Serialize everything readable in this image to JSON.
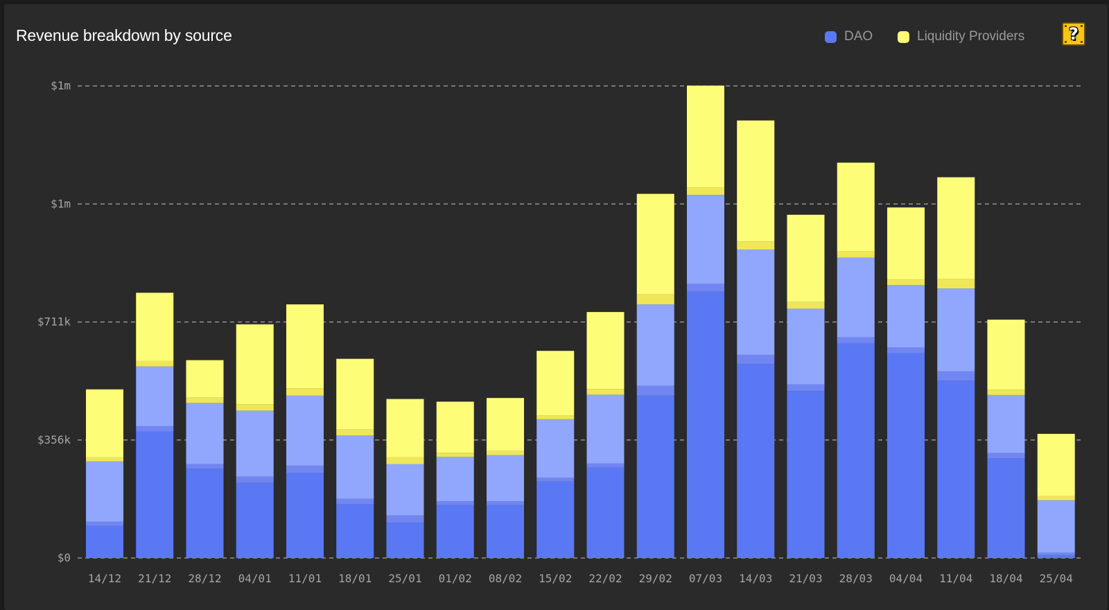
{
  "title": "Revenue breakdown by source",
  "legend": [
    {
      "label": "DAO",
      "color": "#5a78f4"
    },
    {
      "label": "Liquidity Providers",
      "color": "#fdfd78"
    }
  ],
  "help_icon": "question-block-icon",
  "help_symbol": "?",
  "colors": {
    "background": "#2a2a2a",
    "grid": "#bdbdbd",
    "dao_dark": "#5a78f4",
    "dao_light": "#90a7fd",
    "dao_mid": "#7186f1",
    "lp_light": "#fdfd78",
    "lp_dark": "#efe757"
  },
  "chart_data": {
    "type": "bar",
    "stacked": true,
    "categories": [
      "14/12",
      "21/12",
      "28/12",
      "04/01",
      "11/01",
      "18/01",
      "25/01",
      "01/02",
      "08/02",
      "15/02",
      "22/02",
      "29/02",
      "07/03",
      "14/03",
      "21/03",
      "28/03",
      "04/04",
      "11/04",
      "18/04",
      "25/04"
    ],
    "y_tick_labels": [
      "$0",
      "$356k",
      "$711k",
      "$1m",
      "$1m"
    ],
    "ylim": [
      0,
      1422000
    ],
    "grid": true,
    "legend_position": "top-right",
    "series": [
      {
        "name": "DAO",
        "segments": [
          "dao_dark",
          "dao_mid",
          "dao_light"
        ],
        "values": [
          [
            97000,
            12000,
            182000
          ],
          [
            381000,
            16000,
            180000
          ],
          [
            269000,
            14000,
            184000
          ],
          [
            226000,
            19000,
            199000
          ],
          [
            256000,
            22000,
            211000
          ],
          [
            162000,
            16000,
            191000
          ],
          [
            106000,
            22000,
            155000
          ],
          [
            159000,
            12000,
            134000
          ],
          [
            159000,
            12000,
            139000
          ],
          [
            230000,
            12000,
            176000
          ],
          [
            272000,
            13000,
            207000
          ],
          [
            489000,
            30000,
            245000
          ],
          [
            803000,
            23000,
            268000
          ],
          [
            584000,
            28000,
            317000
          ],
          [
            503000,
            20000,
            228000
          ],
          [
            646000,
            19000,
            240000
          ],
          [
            617000,
            17000,
            188000
          ],
          [
            534000,
            28000,
            250000
          ],
          [
            300000,
            16000,
            175000
          ],
          [
            8000,
            8000,
            158000
          ]
        ]
      },
      {
        "name": "Liquidity Providers",
        "segments": [
          "lp_dark",
          "lp_light"
        ],
        "values": [
          [
            12000,
            205000
          ],
          [
            17000,
            205000
          ],
          [
            16000,
            113000
          ],
          [
            19000,
            241000
          ],
          [
            22000,
            253000
          ],
          [
            18000,
            213000
          ],
          [
            20000,
            176000
          ],
          [
            12000,
            154000
          ],
          [
            12000,
            160000
          ],
          [
            12000,
            194000
          ],
          [
            17000,
            232000
          ],
          [
            30000,
            303000
          ],
          [
            23000,
            306000
          ],
          [
            25000,
            364000
          ],
          [
            20000,
            263000
          ],
          [
            20000,
            266000
          ],
          [
            17000,
            217000
          ],
          [
            28000,
            307000
          ],
          [
            16000,
            211000
          ],
          [
            13000,
            187000
          ]
        ]
      }
    ]
  }
}
